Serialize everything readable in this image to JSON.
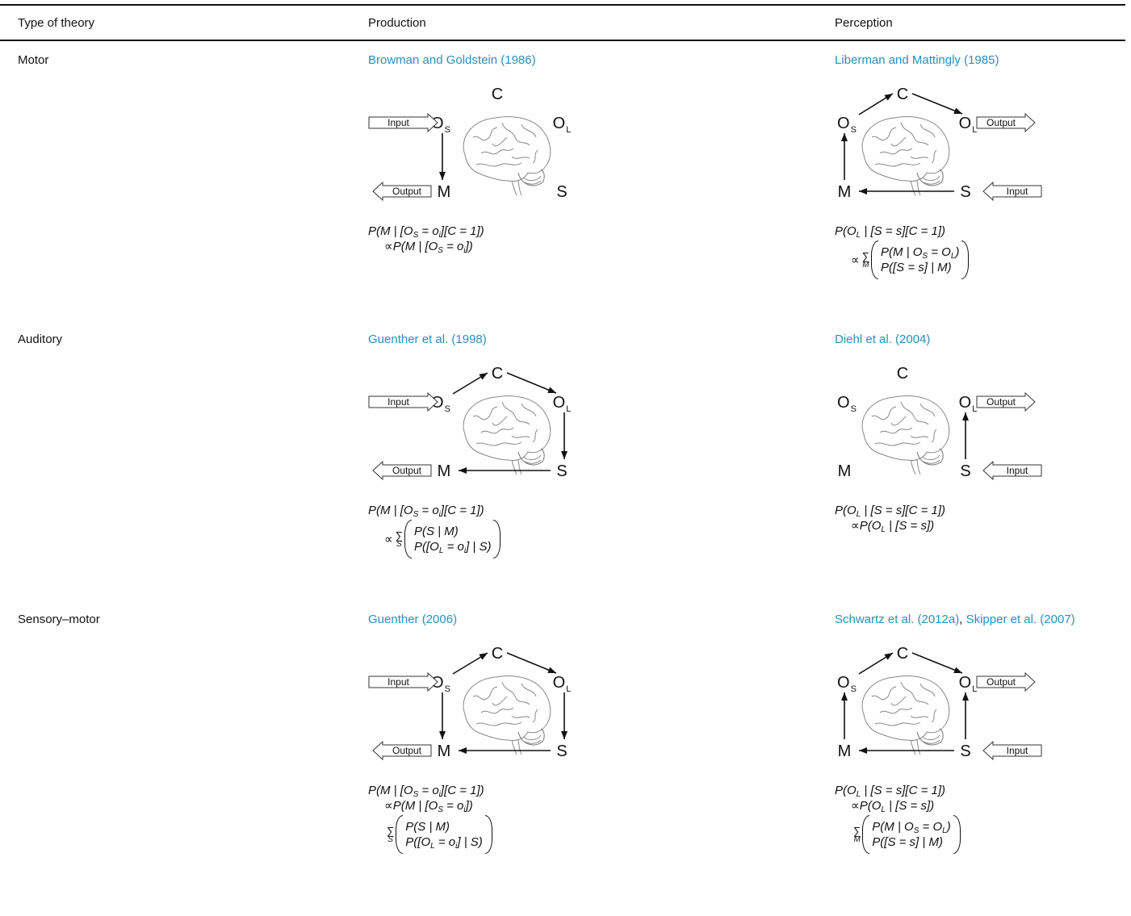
{
  "header": [
    "Type of theory",
    "Production",
    "Perception"
  ],
  "diagram_labels": {
    "C": "C",
    "O": "O",
    "sub_S": "S",
    "sub_L": "L",
    "M": "M",
    "S": "S",
    "input": "Input",
    "output": "Output"
  },
  "rows": [
    {
      "type": "Motor",
      "production": {
        "citations": [
          "Browman and Goldstein (1986)"
        ],
        "formula": [
          [
            "P(M | [O",
            {
              "sub": "S"
            },
            " = o",
            {
              "sub": "i"
            },
            "][C = 1])"
          ],
          [
            "∝P(M | [O",
            {
              "sub": "S"
            },
            " = o",
            {
              "sub": "i"
            },
            "])"
          ]
        ]
      },
      "perception": {
        "citations": [
          "Liberman and Mattingly (1985)"
        ],
        "formula": [
          [
            "P(O",
            {
              "sub": "L"
            },
            " | [S = s][C = 1])"
          ],
          {
            "prefix": "∝",
            "sum": "∑",
            "index": "M",
            "stack": [
              [
                "P(M | O",
                {
                  "sub": "S"
                },
                " = O",
                {
                  "sub": "L"
                },
                ")"
              ],
              [
                "P([S = s] | M)"
              ]
            ]
          }
        ]
      }
    },
    {
      "type": "Auditory",
      "production": {
        "citations": [
          "Guenther et al. (1998)"
        ],
        "formula": [
          [
            "P(M | [O",
            {
              "sub": "S"
            },
            " = o",
            {
              "sub": "i"
            },
            "][C = 1])"
          ],
          {
            "prefix": "∝",
            "sum": "∑",
            "index": "S",
            "stack": [
              [
                "P(S | M)"
              ],
              [
                "P([O",
                {
                  "sub": "L"
                },
                " = o",
                {
                  "sub": "i"
                },
                "] | S)"
              ]
            ]
          }
        ]
      },
      "perception": {
        "citations": [
          "Diehl et al. (2004)"
        ],
        "formula": [
          [
            "P(O",
            {
              "sub": "L"
            },
            " | [S = s][C = 1])"
          ],
          [
            "∝P(O",
            {
              "sub": "L"
            },
            " | [S = s])"
          ]
        ]
      }
    },
    {
      "type": "Sensory–motor",
      "production": {
        "citations": [
          "Guenther (2006)"
        ],
        "formula": [
          [
            "P(M | [O",
            {
              "sub": "S"
            },
            " = o",
            {
              "sub": "i"
            },
            "][C = 1])"
          ],
          [
            "∝P(M | [O",
            {
              "sub": "S"
            },
            " = o",
            {
              "sub": "i"
            },
            "])"
          ],
          {
            "sum": "∑",
            "index": "S",
            "stack": [
              [
                "P(S | M)"
              ],
              [
                "P([O",
                {
                  "sub": "L"
                },
                " = o",
                {
                  "sub": "i"
                },
                "] | S)"
              ]
            ]
          }
        ]
      },
      "perception": {
        "citations": [
          "Schwartz et al. (2012a)",
          "Skipper et al. (2007)"
        ],
        "separator": ", ",
        "formula": [
          [
            "P(O",
            {
              "sub": "L"
            },
            " | [S = s][C = 1])"
          ],
          [
            "∝P(O",
            {
              "sub": "L"
            },
            " | [S = s])"
          ],
          {
            "sum": "∑",
            "index": "M",
            "stack": [
              [
                "P(M | O",
                {
                  "sub": "S"
                },
                " = O",
                {
                  "sub": "L"
                },
                ")"
              ],
              [
                "P([S = s] | M)"
              ]
            ]
          }
        ]
      }
    }
  ]
}
